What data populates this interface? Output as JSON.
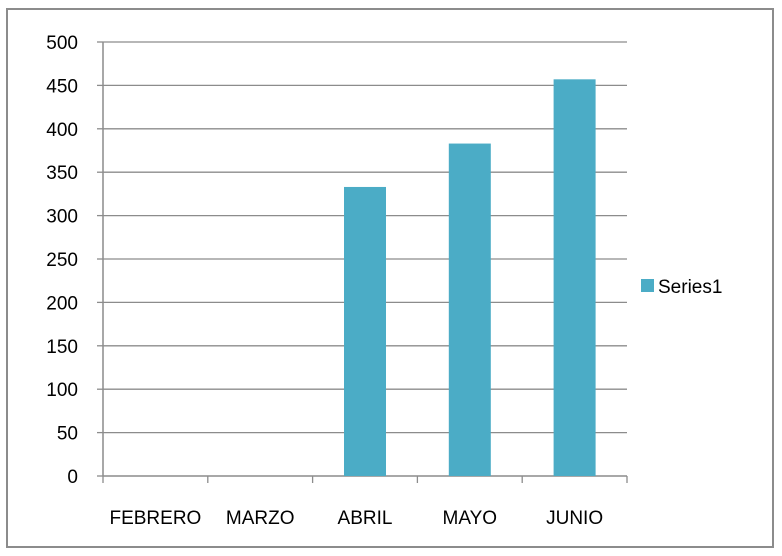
{
  "chart_data": {
    "type": "bar",
    "categories": [
      "FEBRERO",
      "MARZO",
      "ABRIL",
      "MAYO",
      "JUNIO"
    ],
    "series": [
      {
        "name": "Series1",
        "values": [
          0,
          0,
          333,
          383,
          457
        ],
        "color": "#4bacc6"
      }
    ],
    "title": "",
    "xlabel": "",
    "ylabel": "",
    "ylim": [
      0,
      500
    ],
    "ytick_step": 50,
    "grid": true,
    "gridline_color": "#8c8c8c",
    "axis_color": "#8c8c8c",
    "legend_position": "right"
  }
}
